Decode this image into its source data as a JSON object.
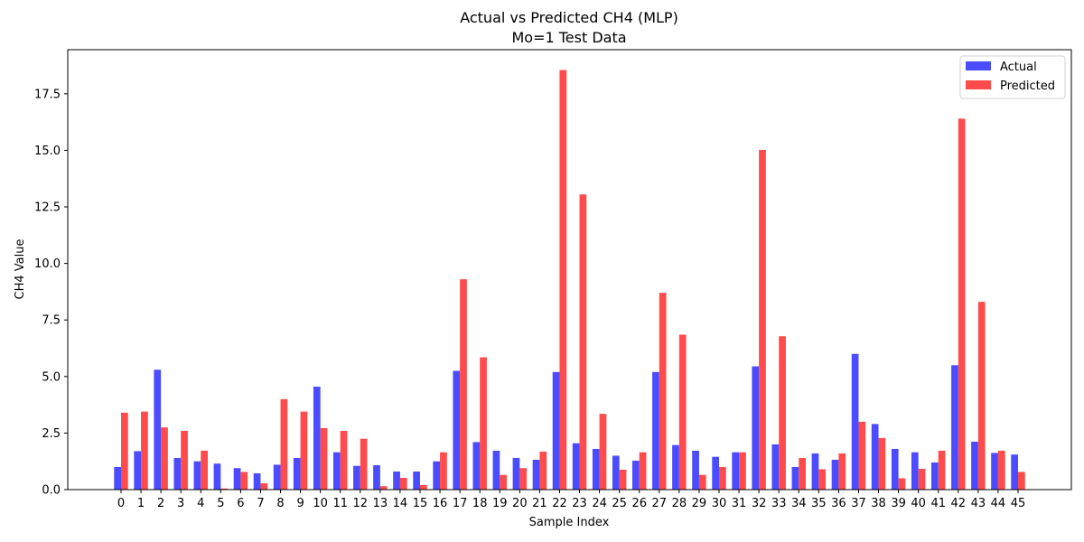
{
  "chart_data": {
    "type": "bar",
    "title": "Actual vs Predicted CH4 (MLP)",
    "subtitle": "Mo=1 Test Data",
    "xlabel": "Sample Index",
    "ylabel": "CH4 Value",
    "ylim": [
      0,
      19.45
    ],
    "yticks": [
      "0.0",
      "2.5",
      "5.0",
      "7.5",
      "10.0",
      "12.5",
      "15.0",
      "17.5"
    ],
    "grid": false,
    "legend_position": "top-right",
    "categories": [
      "0",
      "1",
      "2",
      "3",
      "4",
      "5",
      "6",
      "7",
      "8",
      "9",
      "10",
      "11",
      "12",
      "13",
      "14",
      "15",
      "16",
      "17",
      "18",
      "19",
      "20",
      "21",
      "22",
      "23",
      "24",
      "25",
      "26",
      "27",
      "28",
      "29",
      "30",
      "31",
      "32",
      "33",
      "34",
      "35",
      "36",
      "37",
      "38",
      "39",
      "40",
      "41",
      "42",
      "43",
      "44",
      "45"
    ],
    "series": [
      {
        "name": "Actual",
        "color": "#4b4bff",
        "values": [
          1.0,
          1.7,
          5.3,
          1.4,
          1.25,
          1.15,
          0.95,
          0.72,
          1.1,
          1.4,
          4.55,
          1.65,
          1.05,
          1.08,
          0.8,
          0.8,
          1.25,
          5.25,
          2.1,
          1.72,
          1.4,
          1.32,
          5.2,
          2.05,
          1.8,
          1.5,
          1.28,
          5.2,
          1.97,
          1.72,
          1.45,
          1.65,
          5.45,
          2.0,
          1.0,
          1.6,
          1.32,
          6.0,
          2.9,
          1.8,
          1.65,
          1.2,
          5.5,
          2.12,
          1.62,
          1.55
        ]
      },
      {
        "name": "Predicted",
        "color": "#ff4b4b",
        "values": [
          3.4,
          3.45,
          2.75,
          2.6,
          1.72,
          0.05,
          0.78,
          0.28,
          4.0,
          3.45,
          2.72,
          2.6,
          2.25,
          0.15,
          0.52,
          0.2,
          1.65,
          9.3,
          5.85,
          0.65,
          0.95,
          1.68,
          18.55,
          13.05,
          3.35,
          0.88,
          1.65,
          8.7,
          6.85,
          0.65,
          1.0,
          1.65,
          15.02,
          6.78,
          1.4,
          0.9,
          1.6,
          3.0,
          2.28,
          0.5,
          0.92,
          1.72,
          16.4,
          8.3,
          1.72,
          0.78
        ]
      }
    ]
  }
}
